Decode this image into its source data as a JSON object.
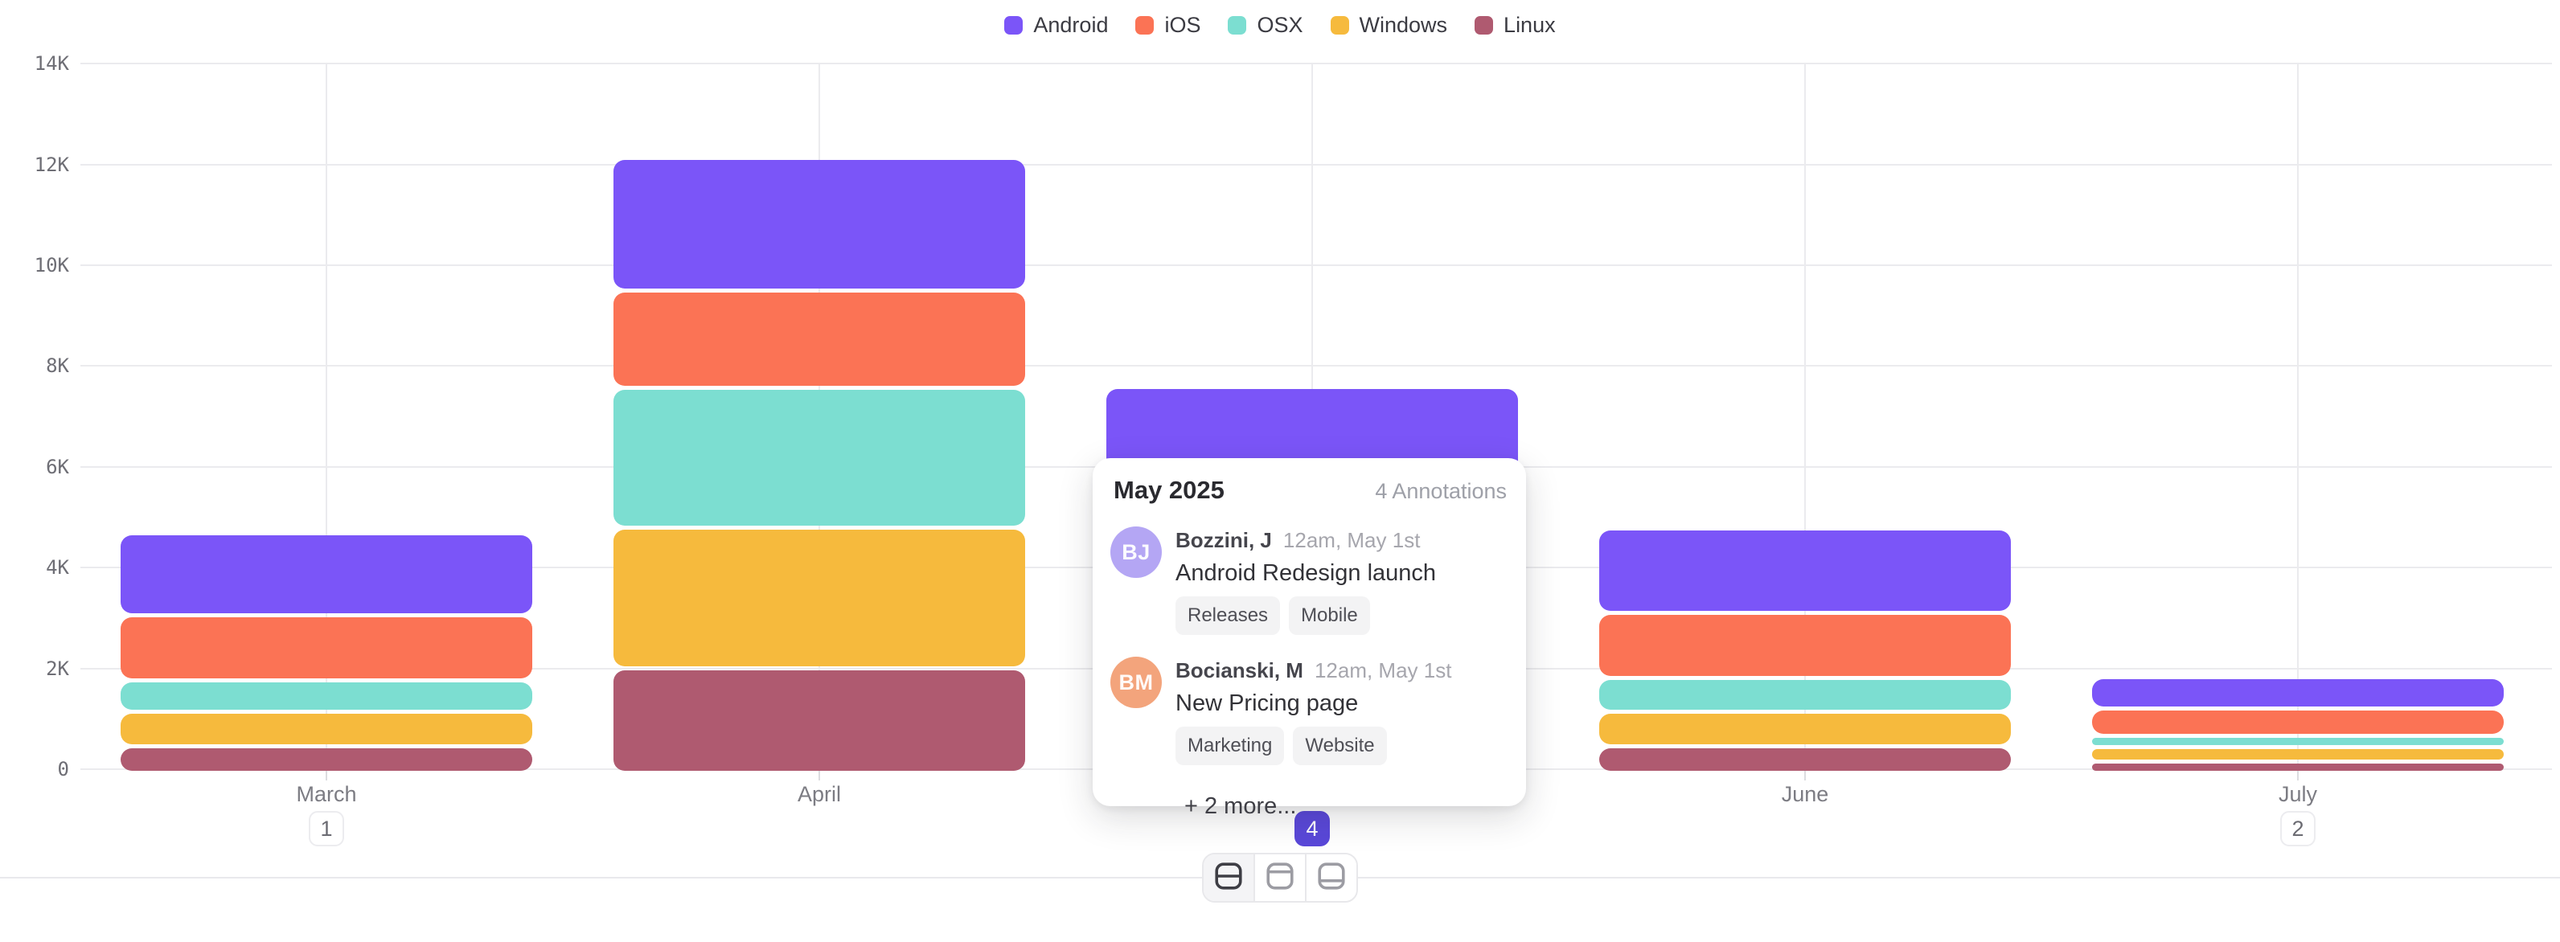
{
  "legend": {
    "items": [
      {
        "label": "Android",
        "color": "#7B55F8"
      },
      {
        "label": "iOS",
        "color": "#FB7355"
      },
      {
        "label": "OSX",
        "color": "#7CDED1"
      },
      {
        "label": "Windows",
        "color": "#F6BA3D"
      },
      {
        "label": "Linux",
        "color": "#AF5A70"
      }
    ]
  },
  "chart_data": {
    "type": "bar",
    "stacked": true,
    "title": "",
    "xlabel": "",
    "ylabel": "",
    "categories": [
      "March",
      "April",
      "May",
      "June",
      "July"
    ],
    "series": [
      {
        "name": "Android",
        "color": "#7B55F8",
        "values": [
          1550,
          2550,
          2250,
          1600,
          550
        ]
      },
      {
        "name": "iOS",
        "color": "#FB7355",
        "values": [
          1200,
          1850,
          1900,
          1200,
          450
        ]
      },
      {
        "name": "OSX",
        "color": "#7CDED1",
        "values": [
          550,
          2700,
          1300,
          600,
          150
        ]
      },
      {
        "name": "Windows",
        "color": "#F6BA3D",
        "values": [
          600,
          2700,
          1100,
          600,
          200
        ]
      },
      {
        "name": "Linux",
        "color": "#AF5A70",
        "values": [
          450,
          2000,
          700,
          450,
          150
        ]
      }
    ],
    "y_tick_labels": [
      "0",
      "2K",
      "4K",
      "6K",
      "8K",
      "10K",
      "12K",
      "14K"
    ],
    "ylim": [
      0,
      14000
    ],
    "grid": "horizontal gridlines every 2K + vertical gridline per category",
    "legend_position": "top-center",
    "annotation_badges": [
      {
        "category": "March",
        "label": "1",
        "active": false
      },
      {
        "category": "May",
        "label": "4",
        "active": true
      },
      {
        "category": "July",
        "label": "2",
        "active": false
      }
    ]
  },
  "tooltip": {
    "title": "May 2025",
    "annotations_count": "4 Annotations",
    "entries": [
      {
        "initials": "BJ",
        "avatar_color": "#B4A6F4",
        "author": "Bozzini, J",
        "timestamp": "12am, May 1st",
        "text": "Android Redesign launch",
        "tags": [
          "Releases",
          "Mobile"
        ]
      },
      {
        "initials": "BM",
        "avatar_color": "#F3A47C",
        "author": "Bocianski, M",
        "timestamp": "12am, May 1st",
        "text": "New Pricing page",
        "tags": [
          "Marketing",
          "Website"
        ]
      }
    ],
    "more_label": "+ 2 more..."
  },
  "toolbar": {
    "buttons": [
      {
        "name": "split-rows-view",
        "active": true
      },
      {
        "name": "panel-top-view",
        "active": false
      },
      {
        "name": "panel-bottom-view",
        "active": false
      }
    ]
  }
}
